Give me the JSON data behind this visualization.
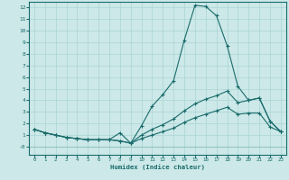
{
  "xlabel": "Humidex (Indice chaleur)",
  "ylabel": "",
  "bg_color": "#cce8e8",
  "line_color": "#1a6b6b",
  "grid_color": "#aad4d4",
  "xlim": [
    -0.5,
    23.5
  ],
  "ylim": [
    -0.7,
    12.5
  ],
  "xticks": [
    0,
    1,
    2,
    3,
    4,
    5,
    6,
    7,
    8,
    9,
    10,
    11,
    12,
    13,
    14,
    15,
    16,
    17,
    18,
    19,
    20,
    21,
    22,
    23
  ],
  "yticks": [
    0,
    1,
    2,
    3,
    4,
    5,
    6,
    7,
    8,
    9,
    10,
    11,
    12
  ],
  "ytick_labels": [
    "-0",
    "1",
    "2",
    "3",
    "4",
    "5",
    "6",
    "7",
    "8",
    "9",
    "10",
    "11",
    "12"
  ],
  "line1_x": [
    0,
    1,
    2,
    3,
    4,
    5,
    6,
    7,
    8,
    9,
    10,
    11,
    12,
    13,
    14,
    15,
    16,
    17,
    18,
    19,
    20,
    21,
    22,
    23
  ],
  "line1_y": [
    1.5,
    1.2,
    1.0,
    0.8,
    0.7,
    0.6,
    0.6,
    0.6,
    1.2,
    0.3,
    1.8,
    3.5,
    4.5,
    5.7,
    9.2,
    12.2,
    12.1,
    11.3,
    8.7,
    5.2,
    4.0,
    4.2,
    2.2,
    1.3
  ],
  "line2_x": [
    0,
    1,
    2,
    3,
    4,
    5,
    6,
    7,
    8,
    9,
    10,
    11,
    12,
    13,
    14,
    15,
    16,
    17,
    18,
    19,
    20,
    21,
    22,
    23
  ],
  "line2_y": [
    1.5,
    1.2,
    1.0,
    0.8,
    0.7,
    0.6,
    0.6,
    0.6,
    0.5,
    0.3,
    1.0,
    1.5,
    1.9,
    2.4,
    3.1,
    3.7,
    4.1,
    4.4,
    4.8,
    3.8,
    4.0,
    4.2,
    2.2,
    1.3
  ],
  "line3_x": [
    0,
    1,
    2,
    3,
    4,
    5,
    6,
    7,
    8,
    9,
    10,
    11,
    12,
    13,
    14,
    15,
    16,
    17,
    18,
    19,
    20,
    21,
    22,
    23
  ],
  "line3_y": [
    1.5,
    1.2,
    1.0,
    0.8,
    0.7,
    0.6,
    0.6,
    0.6,
    0.5,
    0.3,
    0.7,
    1.0,
    1.3,
    1.6,
    2.1,
    2.5,
    2.8,
    3.1,
    3.4,
    2.8,
    2.9,
    2.9,
    1.7,
    1.3
  ]
}
